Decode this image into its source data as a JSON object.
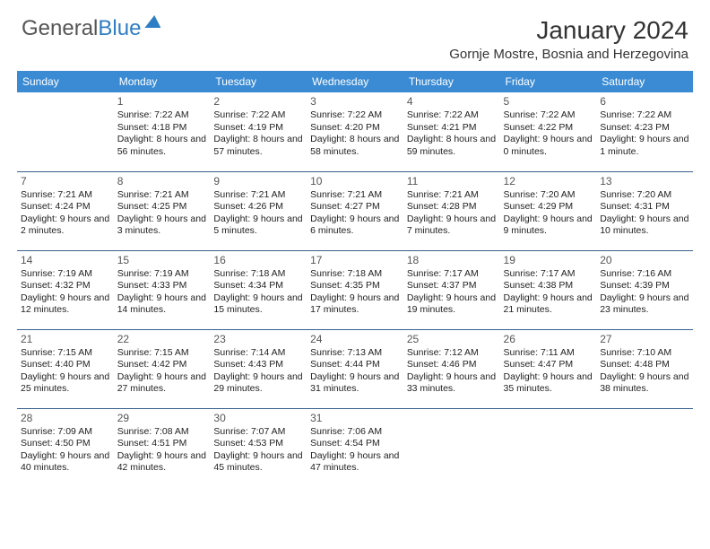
{
  "logo": {
    "text1": "General",
    "text2": "Blue"
  },
  "title": "January 2024",
  "location": "Gornje Mostre, Bosnia and Herzegovina",
  "colors": {
    "header_bg": "#3b8bd4",
    "header_text": "#ffffff",
    "row_border": "#385f8f",
    "daynum": "#555555",
    "body_text": "#222222",
    "logo_gray": "#555555",
    "logo_blue": "#2f7dc4"
  },
  "day_names": [
    "Sunday",
    "Monday",
    "Tuesday",
    "Wednesday",
    "Thursday",
    "Friday",
    "Saturday"
  ],
  "weeks": [
    [
      null,
      {
        "n": "1",
        "sr": "Sunrise: 7:22 AM",
        "ss": "Sunset: 4:18 PM",
        "dl": "Daylight: 8 hours and 56 minutes."
      },
      {
        "n": "2",
        "sr": "Sunrise: 7:22 AM",
        "ss": "Sunset: 4:19 PM",
        "dl": "Daylight: 8 hours and 57 minutes."
      },
      {
        "n": "3",
        "sr": "Sunrise: 7:22 AM",
        "ss": "Sunset: 4:20 PM",
        "dl": "Daylight: 8 hours and 58 minutes."
      },
      {
        "n": "4",
        "sr": "Sunrise: 7:22 AM",
        "ss": "Sunset: 4:21 PM",
        "dl": "Daylight: 8 hours and 59 minutes."
      },
      {
        "n": "5",
        "sr": "Sunrise: 7:22 AM",
        "ss": "Sunset: 4:22 PM",
        "dl": "Daylight: 9 hours and 0 minutes."
      },
      {
        "n": "6",
        "sr": "Sunrise: 7:22 AM",
        "ss": "Sunset: 4:23 PM",
        "dl": "Daylight: 9 hours and 1 minute."
      }
    ],
    [
      {
        "n": "7",
        "sr": "Sunrise: 7:21 AM",
        "ss": "Sunset: 4:24 PM",
        "dl": "Daylight: 9 hours and 2 minutes."
      },
      {
        "n": "8",
        "sr": "Sunrise: 7:21 AM",
        "ss": "Sunset: 4:25 PM",
        "dl": "Daylight: 9 hours and 3 minutes."
      },
      {
        "n": "9",
        "sr": "Sunrise: 7:21 AM",
        "ss": "Sunset: 4:26 PM",
        "dl": "Daylight: 9 hours and 5 minutes."
      },
      {
        "n": "10",
        "sr": "Sunrise: 7:21 AM",
        "ss": "Sunset: 4:27 PM",
        "dl": "Daylight: 9 hours and 6 minutes."
      },
      {
        "n": "11",
        "sr": "Sunrise: 7:21 AM",
        "ss": "Sunset: 4:28 PM",
        "dl": "Daylight: 9 hours and 7 minutes."
      },
      {
        "n": "12",
        "sr": "Sunrise: 7:20 AM",
        "ss": "Sunset: 4:29 PM",
        "dl": "Daylight: 9 hours and 9 minutes."
      },
      {
        "n": "13",
        "sr": "Sunrise: 7:20 AM",
        "ss": "Sunset: 4:31 PM",
        "dl": "Daylight: 9 hours and 10 minutes."
      }
    ],
    [
      {
        "n": "14",
        "sr": "Sunrise: 7:19 AM",
        "ss": "Sunset: 4:32 PM",
        "dl": "Daylight: 9 hours and 12 minutes."
      },
      {
        "n": "15",
        "sr": "Sunrise: 7:19 AM",
        "ss": "Sunset: 4:33 PM",
        "dl": "Daylight: 9 hours and 14 minutes."
      },
      {
        "n": "16",
        "sr": "Sunrise: 7:18 AM",
        "ss": "Sunset: 4:34 PM",
        "dl": "Daylight: 9 hours and 15 minutes."
      },
      {
        "n": "17",
        "sr": "Sunrise: 7:18 AM",
        "ss": "Sunset: 4:35 PM",
        "dl": "Daylight: 9 hours and 17 minutes."
      },
      {
        "n": "18",
        "sr": "Sunrise: 7:17 AM",
        "ss": "Sunset: 4:37 PM",
        "dl": "Daylight: 9 hours and 19 minutes."
      },
      {
        "n": "19",
        "sr": "Sunrise: 7:17 AM",
        "ss": "Sunset: 4:38 PM",
        "dl": "Daylight: 9 hours and 21 minutes."
      },
      {
        "n": "20",
        "sr": "Sunrise: 7:16 AM",
        "ss": "Sunset: 4:39 PM",
        "dl": "Daylight: 9 hours and 23 minutes."
      }
    ],
    [
      {
        "n": "21",
        "sr": "Sunrise: 7:15 AM",
        "ss": "Sunset: 4:40 PM",
        "dl": "Daylight: 9 hours and 25 minutes."
      },
      {
        "n": "22",
        "sr": "Sunrise: 7:15 AM",
        "ss": "Sunset: 4:42 PM",
        "dl": "Daylight: 9 hours and 27 minutes."
      },
      {
        "n": "23",
        "sr": "Sunrise: 7:14 AM",
        "ss": "Sunset: 4:43 PM",
        "dl": "Daylight: 9 hours and 29 minutes."
      },
      {
        "n": "24",
        "sr": "Sunrise: 7:13 AM",
        "ss": "Sunset: 4:44 PM",
        "dl": "Daylight: 9 hours and 31 minutes."
      },
      {
        "n": "25",
        "sr": "Sunrise: 7:12 AM",
        "ss": "Sunset: 4:46 PM",
        "dl": "Daylight: 9 hours and 33 minutes."
      },
      {
        "n": "26",
        "sr": "Sunrise: 7:11 AM",
        "ss": "Sunset: 4:47 PM",
        "dl": "Daylight: 9 hours and 35 minutes."
      },
      {
        "n": "27",
        "sr": "Sunrise: 7:10 AM",
        "ss": "Sunset: 4:48 PM",
        "dl": "Daylight: 9 hours and 38 minutes."
      }
    ],
    [
      {
        "n": "28",
        "sr": "Sunrise: 7:09 AM",
        "ss": "Sunset: 4:50 PM",
        "dl": "Daylight: 9 hours and 40 minutes."
      },
      {
        "n": "29",
        "sr": "Sunrise: 7:08 AM",
        "ss": "Sunset: 4:51 PM",
        "dl": "Daylight: 9 hours and 42 minutes."
      },
      {
        "n": "30",
        "sr": "Sunrise: 7:07 AM",
        "ss": "Sunset: 4:53 PM",
        "dl": "Daylight: 9 hours and 45 minutes."
      },
      {
        "n": "31",
        "sr": "Sunrise: 7:06 AM",
        "ss": "Sunset: 4:54 PM",
        "dl": "Daylight: 9 hours and 47 minutes."
      },
      null,
      null,
      null
    ]
  ]
}
